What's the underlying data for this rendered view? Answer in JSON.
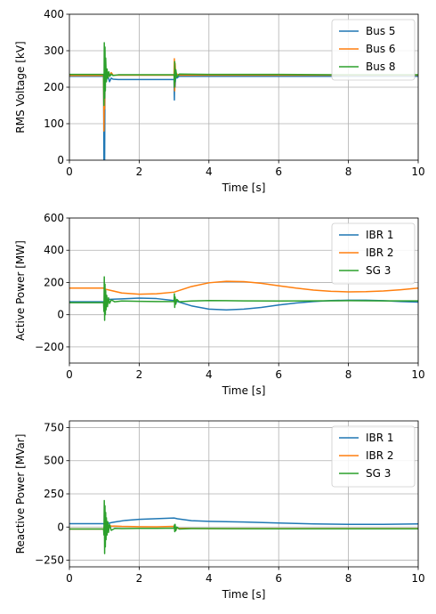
{
  "chart_data": [
    {
      "type": "line",
      "xlabel": "Time [s]",
      "ylabel": "RMS Voltage [kV]",
      "xlim": [
        0,
        10
      ],
      "ylim": [
        0,
        400
      ],
      "xticks": [
        0,
        2,
        4,
        6,
        8,
        10
      ],
      "yticks": [
        0,
        100,
        200,
        300,
        400
      ],
      "grid": true,
      "legend_position": "top-right",
      "series": [
        {
          "name": "Bus 5",
          "color": "#1f77b4",
          "points": [
            [
              0,
              230
            ],
            [
              0.98,
              230
            ],
            [
              0.99,
              0
            ],
            [
              1.0,
              230
            ],
            [
              1.01,
              0
            ],
            [
              1.02,
              225
            ],
            [
              1.05,
              215
            ],
            [
              1.1,
              232
            ],
            [
              1.15,
              215
            ],
            [
              1.2,
              225
            ],
            [
              1.25,
              222
            ],
            [
              1.4,
              221
            ],
            [
              2.0,
              221
            ],
            [
              2.5,
              221
            ],
            [
              3.0,
              221
            ],
            [
              3.01,
              165
            ],
            [
              3.02,
              260
            ],
            [
              3.03,
              200
            ],
            [
              3.05,
              238
            ],
            [
              3.08,
              225
            ],
            [
              3.15,
              230
            ],
            [
              4.0,
              230
            ],
            [
              6.0,
              230
            ],
            [
              8.0,
              230
            ],
            [
              10.0,
              230
            ]
          ]
        },
        {
          "name": "Bus 6",
          "color": "#ff7f0e",
          "points": [
            [
              0,
              232
            ],
            [
              0.98,
              232
            ],
            [
              0.99,
              80
            ],
            [
              1.0,
              200
            ],
            [
              1.01,
              140
            ],
            [
              1.02,
              235
            ],
            [
              1.05,
              230
            ],
            [
              1.1,
              240
            ],
            [
              1.15,
              230
            ],
            [
              1.2,
              240
            ],
            [
              1.25,
              233
            ],
            [
              1.4,
              233
            ],
            [
              2.0,
              233
            ],
            [
              3.0,
              233
            ],
            [
              3.01,
              278
            ],
            [
              3.02,
              190
            ],
            [
              3.03,
              265
            ],
            [
              3.05,
              228
            ],
            [
              3.08,
              236
            ],
            [
              3.15,
              233
            ],
            [
              4.0,
              233
            ],
            [
              6.0,
              233
            ],
            [
              8.0,
              233
            ],
            [
              10.0,
              233
            ]
          ]
        },
        {
          "name": "Bus 8",
          "color": "#2ca02c",
          "points": [
            [
              0,
              235
            ],
            [
              0.98,
              235
            ],
            [
              0.99,
              150
            ],
            [
              1.0,
              322
            ],
            [
              1.01,
              170
            ],
            [
              1.02,
              310
            ],
            [
              1.03,
              190
            ],
            [
              1.04,
              280
            ],
            [
              1.06,
              215
            ],
            [
              1.08,
              250
            ],
            [
              1.1,
              225
            ],
            [
              1.13,
              242
            ],
            [
              1.16,
              230
            ],
            [
              1.2,
              236
            ],
            [
              1.25,
              232
            ],
            [
              1.4,
              234
            ],
            [
              2.0,
              234
            ],
            [
              3.0,
              234
            ],
            [
              3.01,
              200
            ],
            [
              3.02,
              270
            ],
            [
              3.03,
              215
            ],
            [
              3.05,
              248
            ],
            [
              3.08,
              228
            ],
            [
              3.15,
              236
            ],
            [
              4.0,
              235
            ],
            [
              6.0,
              235
            ],
            [
              8.0,
              234
            ],
            [
              10.0,
              234
            ]
          ]
        }
      ]
    },
    {
      "type": "line",
      "xlabel": "Time [s]",
      "ylabel": "Active Power [MW]",
      "xlim": [
        0,
        10
      ],
      "ylim": [
        -300,
        600
      ],
      "xticks": [
        0,
        2,
        4,
        6,
        8,
        10
      ],
      "yticks": [
        -200,
        0,
        200,
        400,
        600
      ],
      "grid": true,
      "legend_position": "top-right",
      "series": [
        {
          "name": "IBR 1",
          "color": "#1f77b4",
          "points": [
            [
              0,
              80
            ],
            [
              0.98,
              80
            ],
            [
              1.0,
              60
            ],
            [
              1.05,
              85
            ],
            [
              1.1,
              95
            ],
            [
              1.5,
              98
            ],
            [
              2.0,
              103
            ],
            [
              2.5,
              100
            ],
            [
              3.0,
              88
            ],
            [
              3.5,
              55
            ],
            [
              4.0,
              35
            ],
            [
              4.5,
              30
            ],
            [
              5.0,
              35
            ],
            [
              5.5,
              45
            ],
            [
              6.0,
              60
            ],
            [
              6.5,
              73
            ],
            [
              7.0,
              82
            ],
            [
              7.5,
              88
            ],
            [
              8.0,
              90
            ],
            [
              8.5,
              90
            ],
            [
              9.0,
              87
            ],
            [
              9.5,
              82
            ],
            [
              10.0,
              78
            ]
          ]
        },
        {
          "name": "IBR 2",
          "color": "#ff7f0e",
          "points": [
            [
              0,
              165
            ],
            [
              0.98,
              165
            ],
            [
              1.0,
              160
            ],
            [
              1.2,
              150
            ],
            [
              1.5,
              135
            ],
            [
              2.0,
              127
            ],
            [
              2.5,
              130
            ],
            [
              3.0,
              140
            ],
            [
              3.5,
              175
            ],
            [
              4.0,
              198
            ],
            [
              4.5,
              207
            ],
            [
              5.0,
              205
            ],
            [
              5.5,
              195
            ],
            [
              6.0,
              180
            ],
            [
              6.5,
              165
            ],
            [
              7.0,
              153
            ],
            [
              7.5,
              145
            ],
            [
              8.0,
              142
            ],
            [
              8.5,
              143
            ],
            [
              9.0,
              147
            ],
            [
              9.5,
              155
            ],
            [
              10.0,
              165
            ]
          ]
        },
        {
          "name": "SG 3",
          "color": "#2ca02c",
          "points": [
            [
              0,
              75
            ],
            [
              0.98,
              75
            ],
            [
              0.99,
              20
            ],
            [
              1.0,
              235
            ],
            [
              1.01,
              -35
            ],
            [
              1.02,
              190
            ],
            [
              1.03,
              0
            ],
            [
              1.04,
              150
            ],
            [
              1.05,
              30
            ],
            [
              1.07,
              120
            ],
            [
              1.09,
              50
            ],
            [
              1.12,
              105
            ],
            [
              1.15,
              70
            ],
            [
              1.2,
              92
            ],
            [
              1.3,
              80
            ],
            [
              1.5,
              85
            ],
            [
              2.0,
              83
            ],
            [
              2.5,
              82
            ],
            [
              3.0,
              82
            ],
            [
              3.01,
              130
            ],
            [
              3.02,
              45
            ],
            [
              3.03,
              110
            ],
            [
              3.05,
              65
            ],
            [
              3.08,
              95
            ],
            [
              3.15,
              80
            ],
            [
              3.5,
              85
            ],
            [
              4.0,
              88
            ],
            [
              5.0,
              86
            ],
            [
              6.0,
              85
            ],
            [
              7.0,
              86
            ],
            [
              8.0,
              87
            ],
            [
              9.0,
              86
            ],
            [
              10.0,
              86
            ]
          ]
        }
      ]
    },
    {
      "type": "line",
      "xlabel": "Time [s]",
      "ylabel": "Reactive Power [MVar]",
      "xlim": [
        0,
        10
      ],
      "ylim": [
        -300,
        800
      ],
      "xticks": [
        0,
        2,
        4,
        6,
        8,
        10
      ],
      "yticks": [
        -250,
        0,
        250,
        500,
        750
      ],
      "grid": true,
      "legend_position": "top-right",
      "series": [
        {
          "name": "IBR 1",
          "color": "#1f77b4",
          "points": [
            [
              0,
              25
            ],
            [
              0.98,
              25
            ],
            [
              1.0,
              20
            ],
            [
              1.1,
              28
            ],
            [
              1.3,
              38
            ],
            [
              1.6,
              50
            ],
            [
              2.0,
              58
            ],
            [
              2.5,
              63
            ],
            [
              3.0,
              68
            ],
            [
              3.1,
              62
            ],
            [
              3.5,
              48
            ],
            [
              4.0,
              43
            ],
            [
              5.0,
              38
            ],
            [
              6.0,
              30
            ],
            [
              7.0,
              24
            ],
            [
              8.0,
              20
            ],
            [
              9.0,
              20
            ],
            [
              10.0,
              24
            ]
          ]
        },
        {
          "name": "IBR 2",
          "color": "#ff7f0e",
          "points": [
            [
              0,
              -15
            ],
            [
              0.98,
              -15
            ],
            [
              1.0,
              0
            ],
            [
              1.05,
              15
            ],
            [
              1.2,
              8
            ],
            [
              1.5,
              5
            ],
            [
              2.0,
              3
            ],
            [
              2.5,
              2
            ],
            [
              3.0,
              5
            ],
            [
              3.05,
              -10
            ],
            [
              3.3,
              -10
            ],
            [
              4.0,
              -12
            ],
            [
              6.0,
              -12
            ],
            [
              8.0,
              -12
            ],
            [
              10.0,
              -12
            ]
          ]
        },
        {
          "name": "SG 3",
          "color": "#2ca02c",
          "points": [
            [
              0,
              -15
            ],
            [
              0.98,
              -15
            ],
            [
              0.99,
              -60
            ],
            [
              1.0,
              200
            ],
            [
              1.01,
              -200
            ],
            [
              1.02,
              160
            ],
            [
              1.03,
              -150
            ],
            [
              1.04,
              110
            ],
            [
              1.05,
              -95
            ],
            [
              1.06,
              70
            ],
            [
              1.08,
              -60
            ],
            [
              1.1,
              40
            ],
            [
              1.12,
              -40
            ],
            [
              1.15,
              20
            ],
            [
              1.2,
              -25
            ],
            [
              1.3,
              -10
            ],
            [
              1.5,
              -12
            ],
            [
              2.0,
              -10
            ],
            [
              2.5,
              -10
            ],
            [
              3.0,
              -8
            ],
            [
              3.01,
              15
            ],
            [
              3.02,
              -35
            ],
            [
              3.03,
              20
            ],
            [
              3.05,
              -28
            ],
            [
              3.08,
              0
            ],
            [
              3.15,
              -15
            ],
            [
              3.5,
              -12
            ],
            [
              4.0,
              -12
            ],
            [
              6.0,
              -13
            ],
            [
              8.0,
              -13
            ],
            [
              10.0,
              -13
            ]
          ]
        }
      ]
    }
  ]
}
